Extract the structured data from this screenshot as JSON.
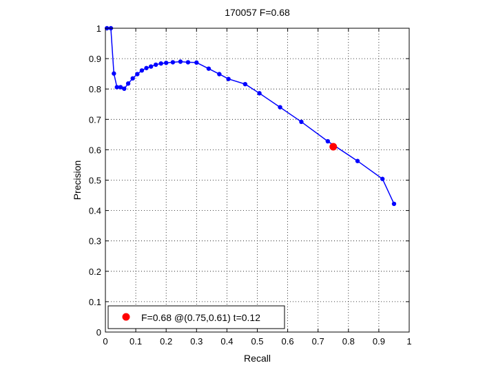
{
  "chart_data": {
    "type": "line",
    "title": "170057 F=0.68",
    "xlabel": "Recall",
    "ylabel": "Precision",
    "xlim": [
      0,
      1
    ],
    "ylim": [
      0,
      1
    ],
    "grid": true,
    "xticks": [
      "0",
      "0.1",
      "0.2",
      "0.3",
      "0.4",
      "0.5",
      "0.6",
      "0.7",
      "0.8",
      "0.9",
      "1"
    ],
    "yticks": [
      "0",
      "0.1",
      "0.2",
      "0.3",
      "0.4",
      "0.5",
      "0.6",
      "0.7",
      "0.8",
      "0.9",
      "1"
    ],
    "series": [
      {
        "color": "#0000ff",
        "points": [
          [
            0.005,
            1.0
          ],
          [
            0.018,
            1.0
          ],
          [
            0.028,
            0.851
          ],
          [
            0.038,
            0.806
          ],
          [
            0.05,
            0.806
          ],
          [
            0.062,
            0.801
          ],
          [
            0.075,
            0.818
          ],
          [
            0.09,
            0.835
          ],
          [
            0.105,
            0.849
          ],
          [
            0.12,
            0.861
          ],
          [
            0.135,
            0.869
          ],
          [
            0.15,
            0.874
          ],
          [
            0.166,
            0.88
          ],
          [
            0.183,
            0.884
          ],
          [
            0.2,
            0.886
          ],
          [
            0.222,
            0.888
          ],
          [
            0.247,
            0.89
          ],
          [
            0.272,
            0.888
          ],
          [
            0.3,
            0.887
          ],
          [
            0.34,
            0.867
          ],
          [
            0.375,
            0.849
          ],
          [
            0.405,
            0.833
          ],
          [
            0.46,
            0.816
          ],
          [
            0.507,
            0.786
          ],
          [
            0.575,
            0.74
          ],
          [
            0.645,
            0.692
          ],
          [
            0.732,
            0.628
          ],
          [
            0.83,
            0.563
          ],
          [
            0.912,
            0.504
          ],
          [
            0.95,
            0.422
          ]
        ]
      }
    ],
    "highlight": {
      "x": 0.75,
      "y": 0.61,
      "color": "#ff0000"
    },
    "legend": {
      "position": "bottom-left",
      "text": "F=0.68 @(0.75,0.61) t=0.12",
      "marker_color": "#ff0000"
    }
  }
}
